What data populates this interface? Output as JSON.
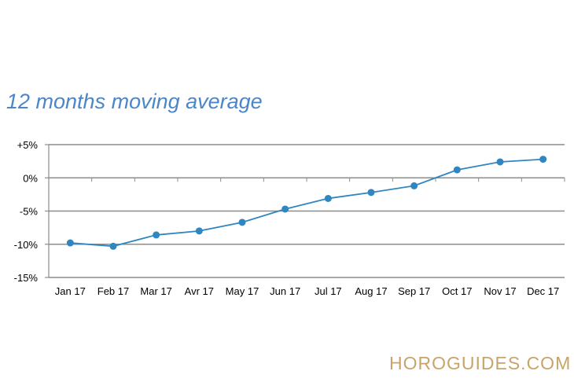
{
  "chart_data": {
    "type": "line",
    "title": "12 months moving average",
    "xlabel": "",
    "ylabel": "",
    "categories": [
      "Jan 17",
      "Feb 17",
      "Mar 17",
      "Avr 17",
      "May 17",
      "Jun 17",
      "Jul 17",
      "Aug 17",
      "Sep 17",
      "Oct 17",
      "Nov 17",
      "Dec 17"
    ],
    "series": [
      {
        "values": [
          -9.8,
          -10.3,
          -8.6,
          -8.0,
          -6.7,
          -4.7,
          -3.1,
          -2.2,
          -1.2,
          1.2,
          2.4,
          2.8
        ]
      }
    ],
    "ylim": [
      -15,
      5
    ],
    "yticks": [
      5,
      0,
      -5,
      -10,
      -15
    ],
    "ytick_labels": [
      "+5%",
      "0%",
      "-5%",
      "-10%",
      "-15%"
    ],
    "grid": true,
    "line_color": "#2f86c1",
    "grid_color": "#8c8c8c"
  },
  "watermark": "HOROGUIDES.COM"
}
